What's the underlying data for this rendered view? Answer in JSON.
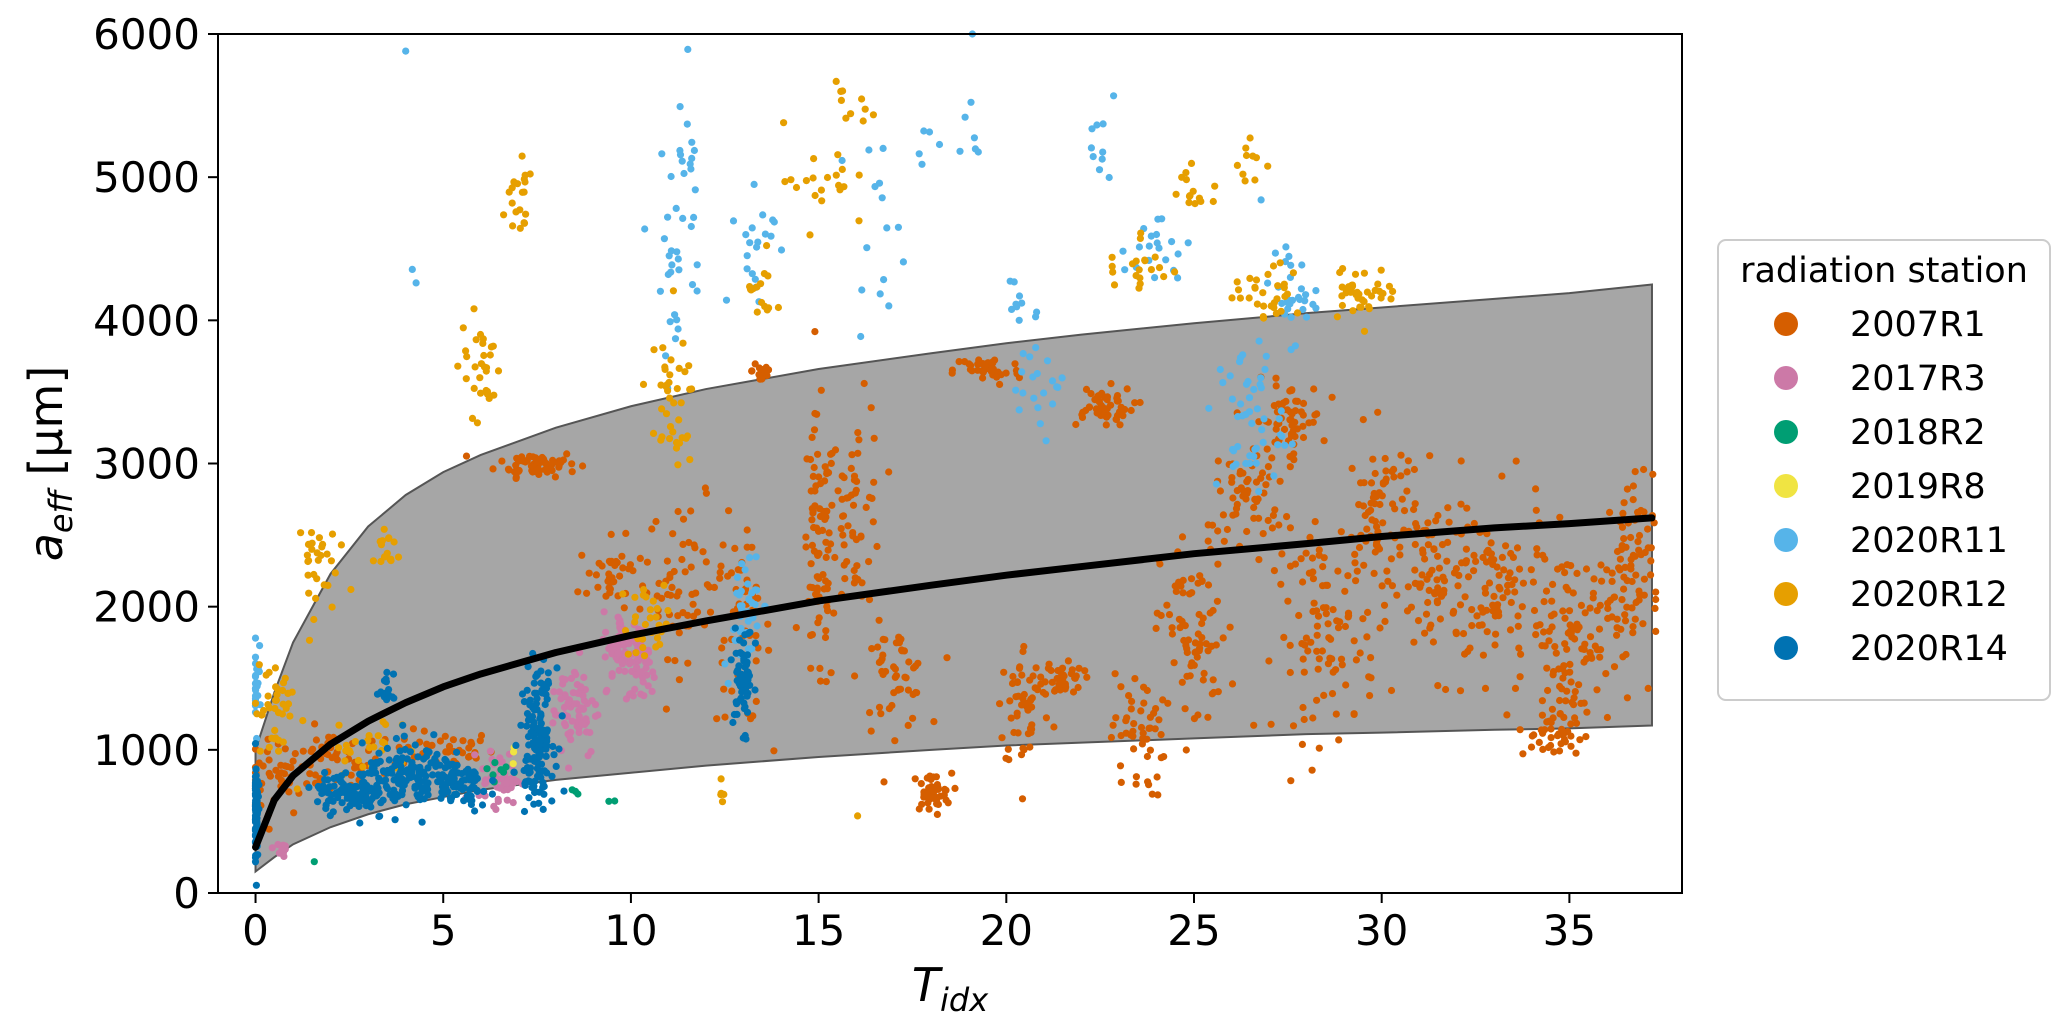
{
  "chart_data": {
    "type": "scatter",
    "xlabel_base": "T",
    "xlabel_sub": "idx",
    "ylabel_base": "a",
    "ylabel_sub": "eff",
    "ylabel_unit": " [μm]",
    "xlim": [
      -1,
      38
    ],
    "ylim": [
      0,
      6000
    ],
    "x_ticks": [
      0,
      5,
      10,
      15,
      20,
      25,
      30,
      35
    ],
    "y_ticks": [
      0,
      1000,
      2000,
      3000,
      4000,
      5000,
      6000
    ],
    "grid": false,
    "legend": {
      "title": "radiation station",
      "placement": "right",
      "entries": [
        {
          "label": "2007R1",
          "color": "#d55e00"
        },
        {
          "label": "2017R3",
          "color": "#cc79a7"
        },
        {
          "label": "2018R2",
          "color": "#009e73"
        },
        {
          "label": "2019R8",
          "color": "#f0e442"
        },
        {
          "label": "2020R11",
          "color": "#56b4e9"
        },
        {
          "label": "2020R12",
          "color": "#e69f00"
        },
        {
          "label": "2020R14",
          "color": "#0072b2"
        }
      ]
    },
    "fit_curve": {
      "color": "#000000",
      "x": [
        0,
        0.5,
        1,
        2,
        3,
        4,
        5,
        6,
        8,
        10,
        12,
        15,
        18,
        20,
        22,
        25,
        28,
        30,
        33,
        35,
        37.2
      ],
      "y": [
        320,
        650,
        820,
        1040,
        1200,
        1330,
        1440,
        1530,
        1680,
        1800,
        1900,
        2040,
        2150,
        2220,
        2280,
        2370,
        2440,
        2490,
        2550,
        2580,
        2620
      ]
    },
    "uncertainty_band": {
      "color": "#a6a6a6",
      "x": [
        0,
        0.5,
        1,
        2,
        3,
        4,
        5,
        6,
        8,
        10,
        12,
        15,
        18,
        20,
        22,
        25,
        28,
        30,
        33,
        35,
        37.2
      ],
      "upper": [
        1000,
        1400,
        1750,
        2230,
        2560,
        2780,
        2940,
        3060,
        3250,
        3400,
        3520,
        3660,
        3770,
        3840,
        3900,
        3980,
        4050,
        4090,
        4150,
        4190,
        4250
      ],
      "lower": [
        150,
        250,
        340,
        460,
        550,
        620,
        670,
        720,
        790,
        840,
        890,
        950,
        1000,
        1030,
        1050,
        1080,
        1110,
        1120,
        1140,
        1150,
        1170
      ]
    },
    "series": [
      {
        "name": "2007R1",
        "color": "#d55e00",
        "clusters": [
          [
            0.5,
            800,
            1.0,
            300,
            40
          ],
          [
            2,
            900,
            1.5,
            250,
            50
          ],
          [
            5,
            1000,
            1.5,
            150,
            40
          ],
          [
            7.5,
            3000,
            1.2,
            100,
            60
          ],
          [
            9.5,
            2200,
            1.0,
            300,
            40
          ],
          [
            11.5,
            2200,
            1.2,
            600,
            60
          ],
          [
            13,
            1800,
            0.8,
            700,
            50
          ],
          [
            13.5,
            3650,
            0.3,
            120,
            20
          ],
          [
            15,
            2300,
            0.5,
            1100,
            80
          ],
          [
            16,
            2700,
            0.8,
            800,
            60
          ],
          [
            17,
            1500,
            1.0,
            400,
            50
          ],
          [
            18,
            700,
            0.6,
            150,
            40
          ],
          [
            19.5,
            3650,
            1.0,
            120,
            40
          ],
          [
            20.5,
            1300,
            0.8,
            500,
            50
          ],
          [
            21.5,
            1500,
            0.6,
            150,
            40
          ],
          [
            22.5,
            3400,
            1.0,
            150,
            50
          ],
          [
            23.5,
            1100,
            0.8,
            500,
            50
          ],
          [
            25,
            1800,
            1.0,
            800,
            80
          ],
          [
            26.5,
            2800,
            1.0,
            400,
            60
          ],
          [
            27.5,
            3300,
            1.0,
            300,
            60
          ],
          [
            28.5,
            1800,
            1.5,
            800,
            100
          ],
          [
            30,
            2600,
            1.0,
            700,
            80
          ],
          [
            31.5,
            2200,
            1.2,
            700,
            80
          ],
          [
            33,
            2100,
            1.5,
            700,
            90
          ],
          [
            35,
            1800,
            1.2,
            700,
            100
          ],
          [
            36.5,
            2200,
            0.8,
            800,
            90
          ],
          [
            34.5,
            1100,
            1.0,
            200,
            40
          ]
        ]
      },
      {
        "name": "2017R3",
        "color": "#cc79a7",
        "clusters": [
          [
            0.7,
            300,
            0.3,
            100,
            10
          ],
          [
            6.5,
            800,
            0.6,
            200,
            50
          ],
          [
            8.5,
            1300,
            0.7,
            400,
            70
          ],
          [
            9.8,
            1700,
            0.6,
            300,
            60
          ],
          [
            10.3,
            1600,
            0.4,
            300,
            40
          ]
        ]
      },
      {
        "name": "2018R2",
        "color": "#009e73",
        "clusters": [
          [
            1.5,
            220,
            0.1,
            10,
            1
          ],
          [
            6.5,
            850,
            0.5,
            100,
            8
          ],
          [
            8.5,
            700,
            0.3,
            50,
            3
          ],
          [
            9.5,
            650,
            0.2,
            20,
            2
          ]
        ]
      },
      {
        "name": "2019R8",
        "color": "#f0e442",
        "clusters": [
          [
            7.0,
            1000,
            0.3,
            100,
            3
          ]
        ]
      },
      {
        "name": "2020R11",
        "color": "#56b4e9",
        "clusters": [
          [
            0,
            1500,
            0.1,
            500,
            25
          ],
          [
            4.2,
            4300,
            0.1,
            50,
            2
          ],
          [
            4.0,
            5880,
            0.1,
            20,
            1
          ],
          [
            11.2,
            4500,
            0.8,
            800,
            30
          ],
          [
            11.5,
            5100,
            0.3,
            400,
            10
          ],
          [
            11.5,
            5900,
            0.1,
            30,
            1
          ],
          [
            13,
            2000,
            0.6,
            500,
            40
          ],
          [
            13.3,
            4500,
            0.6,
            600,
            20
          ],
          [
            16.5,
            4700,
            0.8,
            600,
            15
          ],
          [
            18,
            5200,
            0.6,
            200,
            5
          ],
          [
            19,
            5300,
            0.5,
            300,
            6
          ],
          [
            20.5,
            4100,
            0.5,
            300,
            10
          ],
          [
            22.5,
            5200,
            0.5,
            300,
            10
          ],
          [
            24,
            4500,
            1.0,
            300,
            20
          ],
          [
            26.5,
            3300,
            1.0,
            600,
            50
          ],
          [
            27.5,
            4200,
            0.8,
            400,
            30
          ],
          [
            21,
            3500,
            0.8,
            300,
            20
          ],
          [
            19.1,
            6000,
            0.1,
            10,
            1
          ]
        ]
      },
      {
        "name": "2020R12",
        "color": "#e69f00",
        "clusters": [
          [
            0.5,
            1300,
            0.6,
            500,
            40
          ],
          [
            1.5,
            2300,
            0.7,
            400,
            30
          ],
          [
            3.5,
            2400,
            0.4,
            200,
            15
          ],
          [
            6,
            3700,
            0.6,
            400,
            30
          ],
          [
            7,
            4800,
            0.5,
            400,
            20
          ],
          [
            11,
            3400,
            0.8,
            500,
            40
          ],
          [
            13.5,
            4200,
            0.4,
            300,
            15
          ],
          [
            15,
            5000,
            1.0,
            400,
            20
          ],
          [
            16,
            5500,
            0.6,
            200,
            10
          ],
          [
            23.5,
            4400,
            1.0,
            300,
            20
          ],
          [
            25,
            4900,
            0.8,
            200,
            15
          ],
          [
            27,
            4200,
            1.0,
            200,
            30
          ],
          [
            29.5,
            4200,
            1.0,
            200,
            40
          ],
          [
            26.5,
            5100,
            0.4,
            200,
            10
          ],
          [
            16.1,
            540,
            0.1,
            10,
            1
          ],
          [
            12.5,
            700,
            0.4,
            100,
            5
          ],
          [
            10.5,
            1900,
            0.8,
            300,
            30
          ],
          [
            3,
            1000,
            1.2,
            300,
            30
          ]
        ]
      },
      {
        "name": "2020R14",
        "color": "#0072b2",
        "clusters": [
          [
            0,
            600,
            0.08,
            400,
            80
          ],
          [
            2.5,
            700,
            1.0,
            150,
            90
          ],
          [
            4.2,
            800,
            1.5,
            250,
            160
          ],
          [
            5.5,
            750,
            0.8,
            200,
            60
          ],
          [
            7.5,
            1100,
            0.5,
            500,
            140
          ],
          [
            3.5,
            1400,
            0.2,
            150,
            15
          ],
          [
            13,
            1500,
            0.3,
            400,
            60
          ]
        ]
      }
    ]
  }
}
